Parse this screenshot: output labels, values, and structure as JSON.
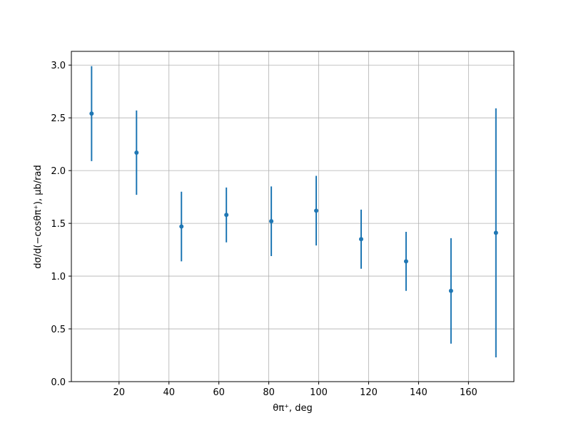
{
  "chart_data": {
    "type": "errorbar",
    "xlabel": "θπ⁺, deg",
    "ylabel": "dσ/d(−cosθπ⁺), μb/rad",
    "x": [
      9,
      27,
      45,
      63,
      81,
      99,
      117,
      135,
      153,
      171
    ],
    "values": [
      2.54,
      2.17,
      1.47,
      1.58,
      1.52,
      1.62,
      1.35,
      1.14,
      0.86,
      1.41
    ],
    "errors": [
      0.45,
      0.4,
      0.33,
      0.26,
      0.33,
      0.33,
      0.28,
      0.28,
      0.5,
      1.18
    ],
    "color": "#1f77b4",
    "xlim": [
      0.9,
      178.2
    ],
    "ylim": [
      0,
      3.13
    ],
    "xticks": [
      20,
      40,
      60,
      80,
      100,
      120,
      140,
      160
    ],
    "yticks": [
      {
        "value": 0,
        "label": "0.0"
      },
      {
        "value": 0.5,
        "label": "0.5"
      },
      {
        "value": 1,
        "label": "1.0"
      },
      {
        "value": 1.5,
        "label": "1.5"
      },
      {
        "value": 2,
        "label": "2.0"
      },
      {
        "value": 2.5,
        "label": "2.5"
      },
      {
        "value": 3,
        "label": "3.0"
      }
    ],
    "grid": true
  }
}
